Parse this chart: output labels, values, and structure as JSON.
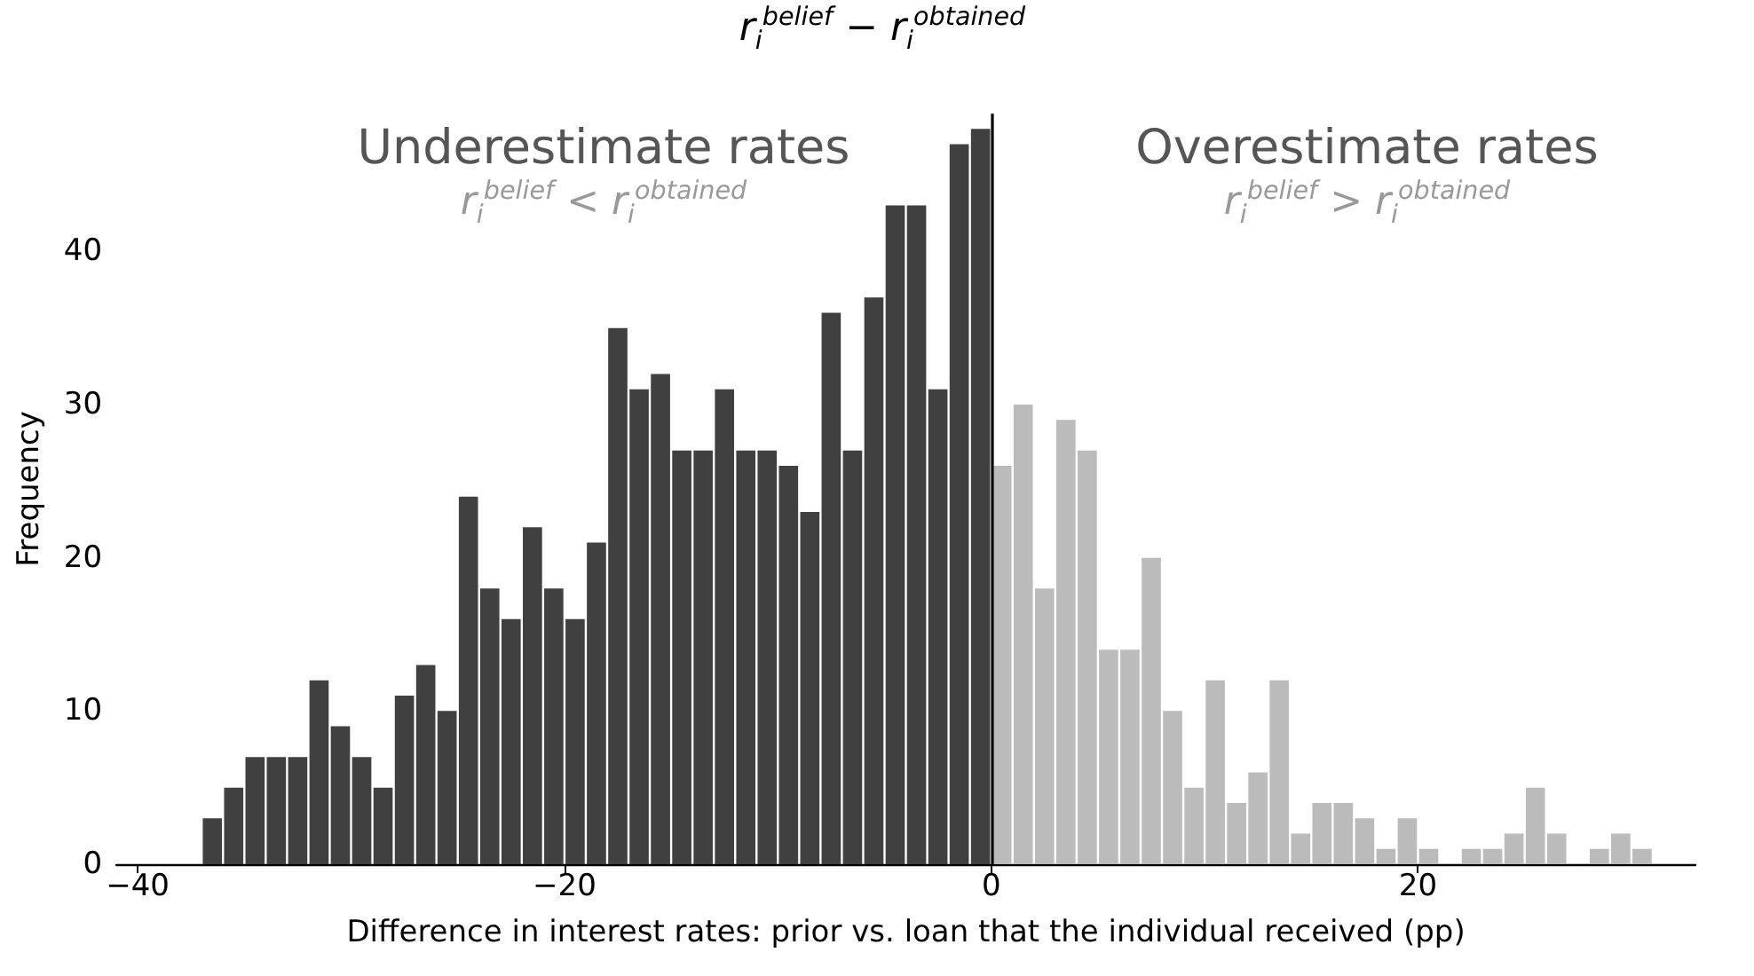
{
  "chart_data": {
    "type": "histogram",
    "title": "r$_{i}$$^{belief}$ − r$_{i}$$^{obtained}$",
    "xlabel": "Difference in interest rates: prior vs. loan that the individual received (pp)",
    "ylabel": "Frequency",
    "annotations": [
      "Underestimate rates",
      "r$_{i}$$^{belief}$ < r$_{i}$$^{obtained}$",
      "Overestimate rates",
      "r$_{i}$$^{belief}$ > r$_{i}$$^{obtained}$"
    ],
    "bins": [
      -37,
      -36,
      -35,
      -34,
      -33,
      -32,
      -31,
      -30,
      -29,
      -28,
      -27,
      -26,
      -25,
      -24,
      -23,
      -22,
      -21,
      -20,
      -19,
      -18,
      -17,
      -16,
      -15,
      -14,
      -13,
      -12,
      -11,
      -10,
      -9,
      -8,
      -7,
      -6,
      -5,
      -4,
      -3,
      -2,
      -1,
      0,
      1,
      2,
      3,
      4,
      5,
      6,
      7,
      8,
      9,
      10,
      11,
      12,
      13,
      14,
      15,
      16,
      17,
      18,
      19,
      20,
      21,
      22,
      23,
      24,
      25,
      26,
      27,
      28,
      29,
      30,
      31
    ],
    "values": [
      3,
      5,
      7,
      7,
      7,
      12,
      9,
      7,
      5,
      11,
      13,
      10,
      24,
      18,
      16,
      22,
      18,
      16,
      21,
      35,
      31,
      32,
      27,
      27,
      31,
      27,
      27,
      26,
      23,
      36,
      27,
      37,
      43,
      43,
      31,
      47,
      48,
      26,
      30,
      18,
      29,
      27,
      14,
      14,
      20,
      10,
      5,
      12,
      4,
      6,
      12,
      2,
      4,
      4,
      3,
      1,
      3,
      1,
      0,
      1,
      1,
      2,
      5,
      2,
      0,
      1,
      2,
      1
    ],
    "colors": [
      "#404040",
      "#404040",
      "#404040",
      "#404040",
      "#404040",
      "#404040",
      "#404040",
      "#404040",
      "#404040",
      "#404040",
      "#404040",
      "#404040",
      "#404040",
      "#404040",
      "#404040",
      "#404040",
      "#404040",
      "#404040",
      "#404040",
      "#404040",
      "#404040",
      "#404040",
      "#404040",
      "#404040",
      "#404040",
      "#404040",
      "#404040",
      "#404040",
      "#404040",
      "#404040",
      "#404040",
      "#404040",
      "#404040",
      "#404040",
      "#404040",
      "#404040",
      "#404040",
      "#bbbbbb",
      "#bbbbbb",
      "#bbbbbb",
      "#bbbbbb",
      "#bbbbbb",
      "#bbbbbb",
      "#bbbbbb",
      "#bbbbbb",
      "#bbbbbb",
      "#bbbbbb",
      "#bbbbbb",
      "#bbbbbb",
      "#bbbbbb",
      "#bbbbbb",
      "#bbbbbb",
      "#bbbbbb",
      "#bbbbbb",
      "#bbbbbb",
      "#bbbbbb",
      "#bbbbbb",
      "#bbbbbb",
      "#bbbbbb",
      "#bbbbbb",
      "#bbbbbb",
      "#bbbbbb",
      "#bbbbbb",
      "#bbbbbb",
      "#bbbbbb",
      "#bbbbbb",
      "#bbbbbb",
      "#bbbbbb"
    ],
    "xlim": [
      -41,
      33
    ],
    "xticks": [
      {
        "value": -40,
        "label": "−40"
      },
      {
        "value": -20,
        "label": "−20"
      },
      0,
      20
    ],
    "ylim": [
      0,
      49
    ],
    "yticks": [
      0,
      10,
      20,
      30,
      40
    ],
    "ref_lines": [
      {
        "axis": "x",
        "value": 0,
        "color": "#000000"
      }
    ]
  }
}
